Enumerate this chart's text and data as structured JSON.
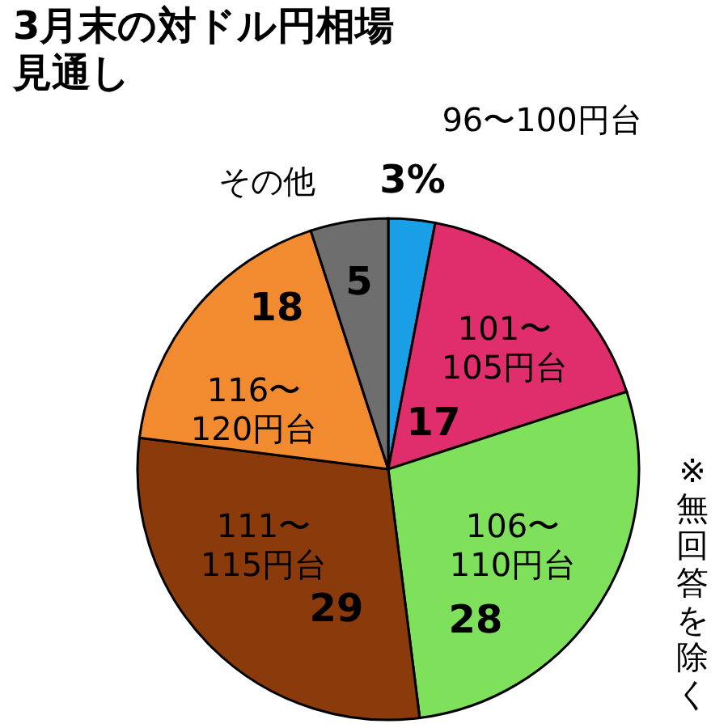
{
  "chart_data": {
    "type": "pie",
    "title": "3月末の対ドル円相場見通し",
    "categories": [
      "96〜100円台",
      "101〜105円台",
      "106〜110円台",
      "111〜115円台",
      "116〜120円台",
      "その他"
    ],
    "values": [
      3,
      17,
      28,
      29,
      18,
      5
    ],
    "colors": [
      "#1a9fe6",
      "#e02d6b",
      "#7fe05c",
      "#8b3a0c",
      "#f28b30",
      "#6e6e6e"
    ],
    "value_labels": [
      "3%",
      "17",
      "28",
      "29",
      "18",
      "5"
    ],
    "annotations": [
      "※無回答を除く"
    ],
    "legend": false
  }
}
